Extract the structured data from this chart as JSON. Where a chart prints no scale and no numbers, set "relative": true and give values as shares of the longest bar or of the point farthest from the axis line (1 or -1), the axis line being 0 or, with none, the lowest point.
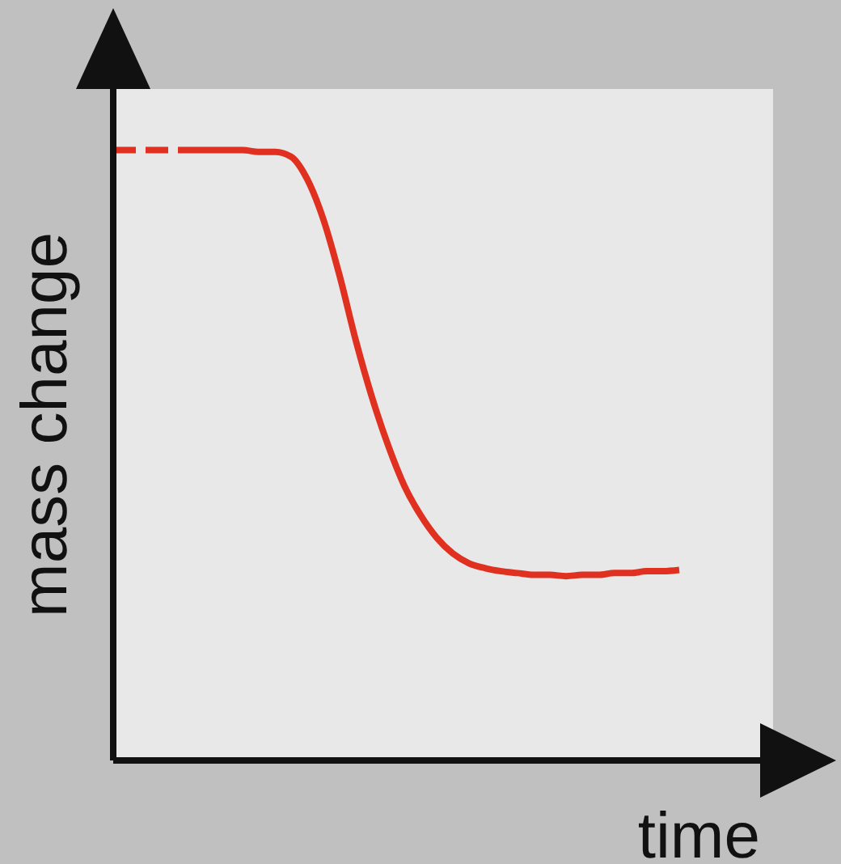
{
  "chart_data": {
    "type": "line",
    "xlabel": "time",
    "ylabel": "mass change",
    "relative": true,
    "categories": [
      null,
      null,
      null,
      null,
      null,
      null,
      null,
      null,
      null,
      null,
      null,
      null,
      null,
      null,
      null,
      null,
      null,
      null,
      null,
      null,
      null,
      null,
      null,
      null,
      null,
      null,
      null,
      null,
      null,
      null,
      null,
      null,
      null,
      null,
      null,
      null,
      null,
      null,
      null,
      null,
      null
    ],
    "series": [
      {
        "type": "line",
        "color": "#e03020",
        "line_style": "dashed",
        "values": [
          1,
          1,
          1,
          1,
          1,
          null,
          null,
          null,
          null,
          null,
          null,
          null,
          null,
          null,
          null,
          null,
          null,
          null,
          null,
          null,
          null,
          null,
          null,
          null,
          null,
          null,
          null,
          null,
          null,
          null,
          null,
          null,
          null,
          null,
          null,
          null,
          null,
          null,
          null,
          null,
          null
        ]
      },
      {
        "type": "line",
        "color": "#e03020",
        "line_style": "solid",
        "values": [
          null,
          null,
          null,
          null,
          1,
          1,
          1,
          1,
          1,
          0.997,
          0.997,
          0.989,
          0.952,
          0.886,
          0.794,
          0.688,
          0.595,
          0.516,
          0.45,
          0.402,
          0.365,
          0.339,
          0.323,
          0.315,
          0.31,
          0.307,
          0.304,
          0.304,
          0.302,
          0.304,
          0.304,
          0.307,
          0.307,
          0.31,
          0.31,
          0.312,
          null,
          null,
          null,
          null,
          null
        ]
      }
    ]
  }
}
